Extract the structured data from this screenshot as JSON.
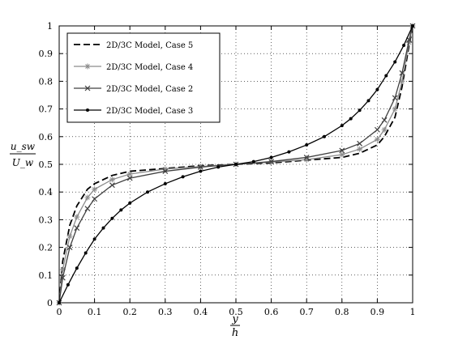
{
  "chart_data": {
    "type": "line",
    "xlim": [
      0,
      1
    ],
    "ylim": [
      0,
      1
    ],
    "grid": true,
    "legend_position": "top-left",
    "x_ticks": [
      "0",
      "0.1",
      "0.2",
      "0.3",
      "0.4",
      "0.5",
      "0.6",
      "0.7",
      "0.8",
      "0.9",
      "1"
    ],
    "y_ticks": [
      "0",
      "0.1",
      "0.2",
      "0.3",
      "0.4",
      "0.5",
      "0.6",
      "0.7",
      "0.8",
      "0.9",
      "1"
    ],
    "xlabel": {
      "numerator": "y",
      "denominator": "h"
    },
    "ylabel": {
      "numerator": "u_sw",
      "denominator": "U_w"
    },
    "series": [
      {
        "name": "2D/3C Model, Case 5",
        "style": "dashed",
        "marker": "none",
        "color": "#000000",
        "x": [
          0,
          0.01,
          0.03,
          0.05,
          0.08,
          0.1,
          0.15,
          0.2,
          0.3,
          0.4,
          0.5,
          0.6,
          0.7,
          0.8,
          0.85,
          0.9,
          0.92,
          0.95,
          0.97,
          0.99,
          1.0
        ],
        "y": [
          0,
          0.15,
          0.28,
          0.35,
          0.41,
          0.43,
          0.46,
          0.475,
          0.485,
          0.495,
          0.5,
          0.505,
          0.515,
          0.525,
          0.54,
          0.57,
          0.6,
          0.67,
          0.78,
          0.93,
          1.0
        ]
      },
      {
        "name": "2D/3C Model, Case 4",
        "style": "solid",
        "marker": "asterisk",
        "color": "#8c8c8c",
        "x": [
          0,
          0.01,
          0.03,
          0.05,
          0.08,
          0.1,
          0.15,
          0.2,
          0.3,
          0.4,
          0.5,
          0.6,
          0.7,
          0.8,
          0.85,
          0.9,
          0.92,
          0.95,
          0.97,
          0.99,
          1.0
        ],
        "y": [
          0,
          0.12,
          0.24,
          0.31,
          0.38,
          0.41,
          0.445,
          0.465,
          0.483,
          0.492,
          0.5,
          0.508,
          0.517,
          0.535,
          0.555,
          0.59,
          0.625,
          0.7,
          0.8,
          0.94,
          1.0
        ]
      },
      {
        "name": "2D/3C Model, Case 2",
        "style": "solid",
        "marker": "x",
        "color": "#404040",
        "x": [
          0,
          0.01,
          0.03,
          0.05,
          0.08,
          0.1,
          0.15,
          0.2,
          0.3,
          0.4,
          0.5,
          0.6,
          0.7,
          0.8,
          0.85,
          0.9,
          0.92,
          0.95,
          0.97,
          0.99,
          1.0
        ],
        "y": [
          0,
          0.09,
          0.2,
          0.27,
          0.34,
          0.375,
          0.425,
          0.45,
          0.475,
          0.49,
          0.5,
          0.51,
          0.525,
          0.55,
          0.575,
          0.625,
          0.66,
          0.74,
          0.83,
          0.95,
          1.0
        ]
      },
      {
        "name": "2D/3C Model, Case 3",
        "style": "solid",
        "marker": "dot",
        "color": "#000000",
        "x": [
          0,
          0.025,
          0.05,
          0.075,
          0.1,
          0.125,
          0.15,
          0.175,
          0.2,
          0.25,
          0.3,
          0.35,
          0.4,
          0.45,
          0.5,
          0.55,
          0.6,
          0.65,
          0.7,
          0.75,
          0.8,
          0.825,
          0.85,
          0.875,
          0.9,
          0.925,
          0.95,
          0.975,
          1.0
        ],
        "y": [
          0,
          0.065,
          0.125,
          0.18,
          0.23,
          0.27,
          0.305,
          0.335,
          0.36,
          0.4,
          0.43,
          0.455,
          0.475,
          0.49,
          0.5,
          0.51,
          0.525,
          0.545,
          0.57,
          0.6,
          0.64,
          0.665,
          0.695,
          0.73,
          0.77,
          0.82,
          0.87,
          0.93,
          1.0
        ]
      }
    ]
  }
}
